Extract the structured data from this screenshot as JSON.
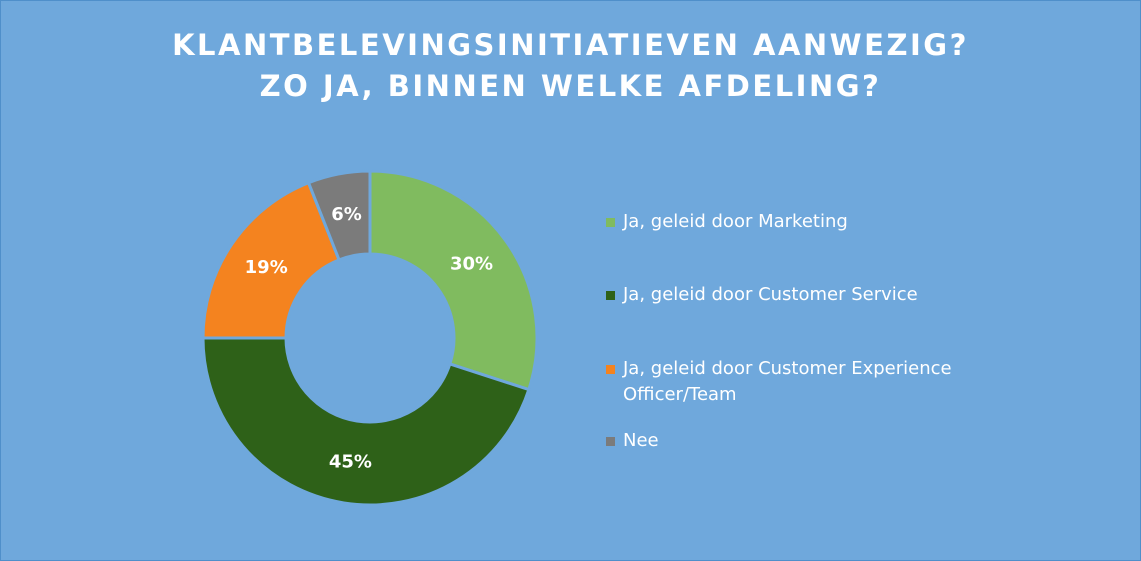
{
  "chart_data": {
    "type": "pie",
    "donut": true,
    "title_lines": [
      "KLANTBELEVINGSINITIATIEVEN AANWEZIG?",
      "ZO JA, BINNEN WELKE AFDELING?"
    ],
    "categories": [
      "Ja, geleid door Marketing",
      "Ja, geleid door Customer Service",
      "Ja, geleid door Customer Experience Officer/Team",
      "Nee"
    ],
    "values": [
      30,
      45,
      19,
      6
    ],
    "data_labels": [
      "30%",
      "45%",
      "19%",
      "6%"
    ],
    "colors": [
      "#80bb5f",
      "#2e6118",
      "#f4831f",
      "#7b7b7b"
    ],
    "legend_position": "right"
  }
}
